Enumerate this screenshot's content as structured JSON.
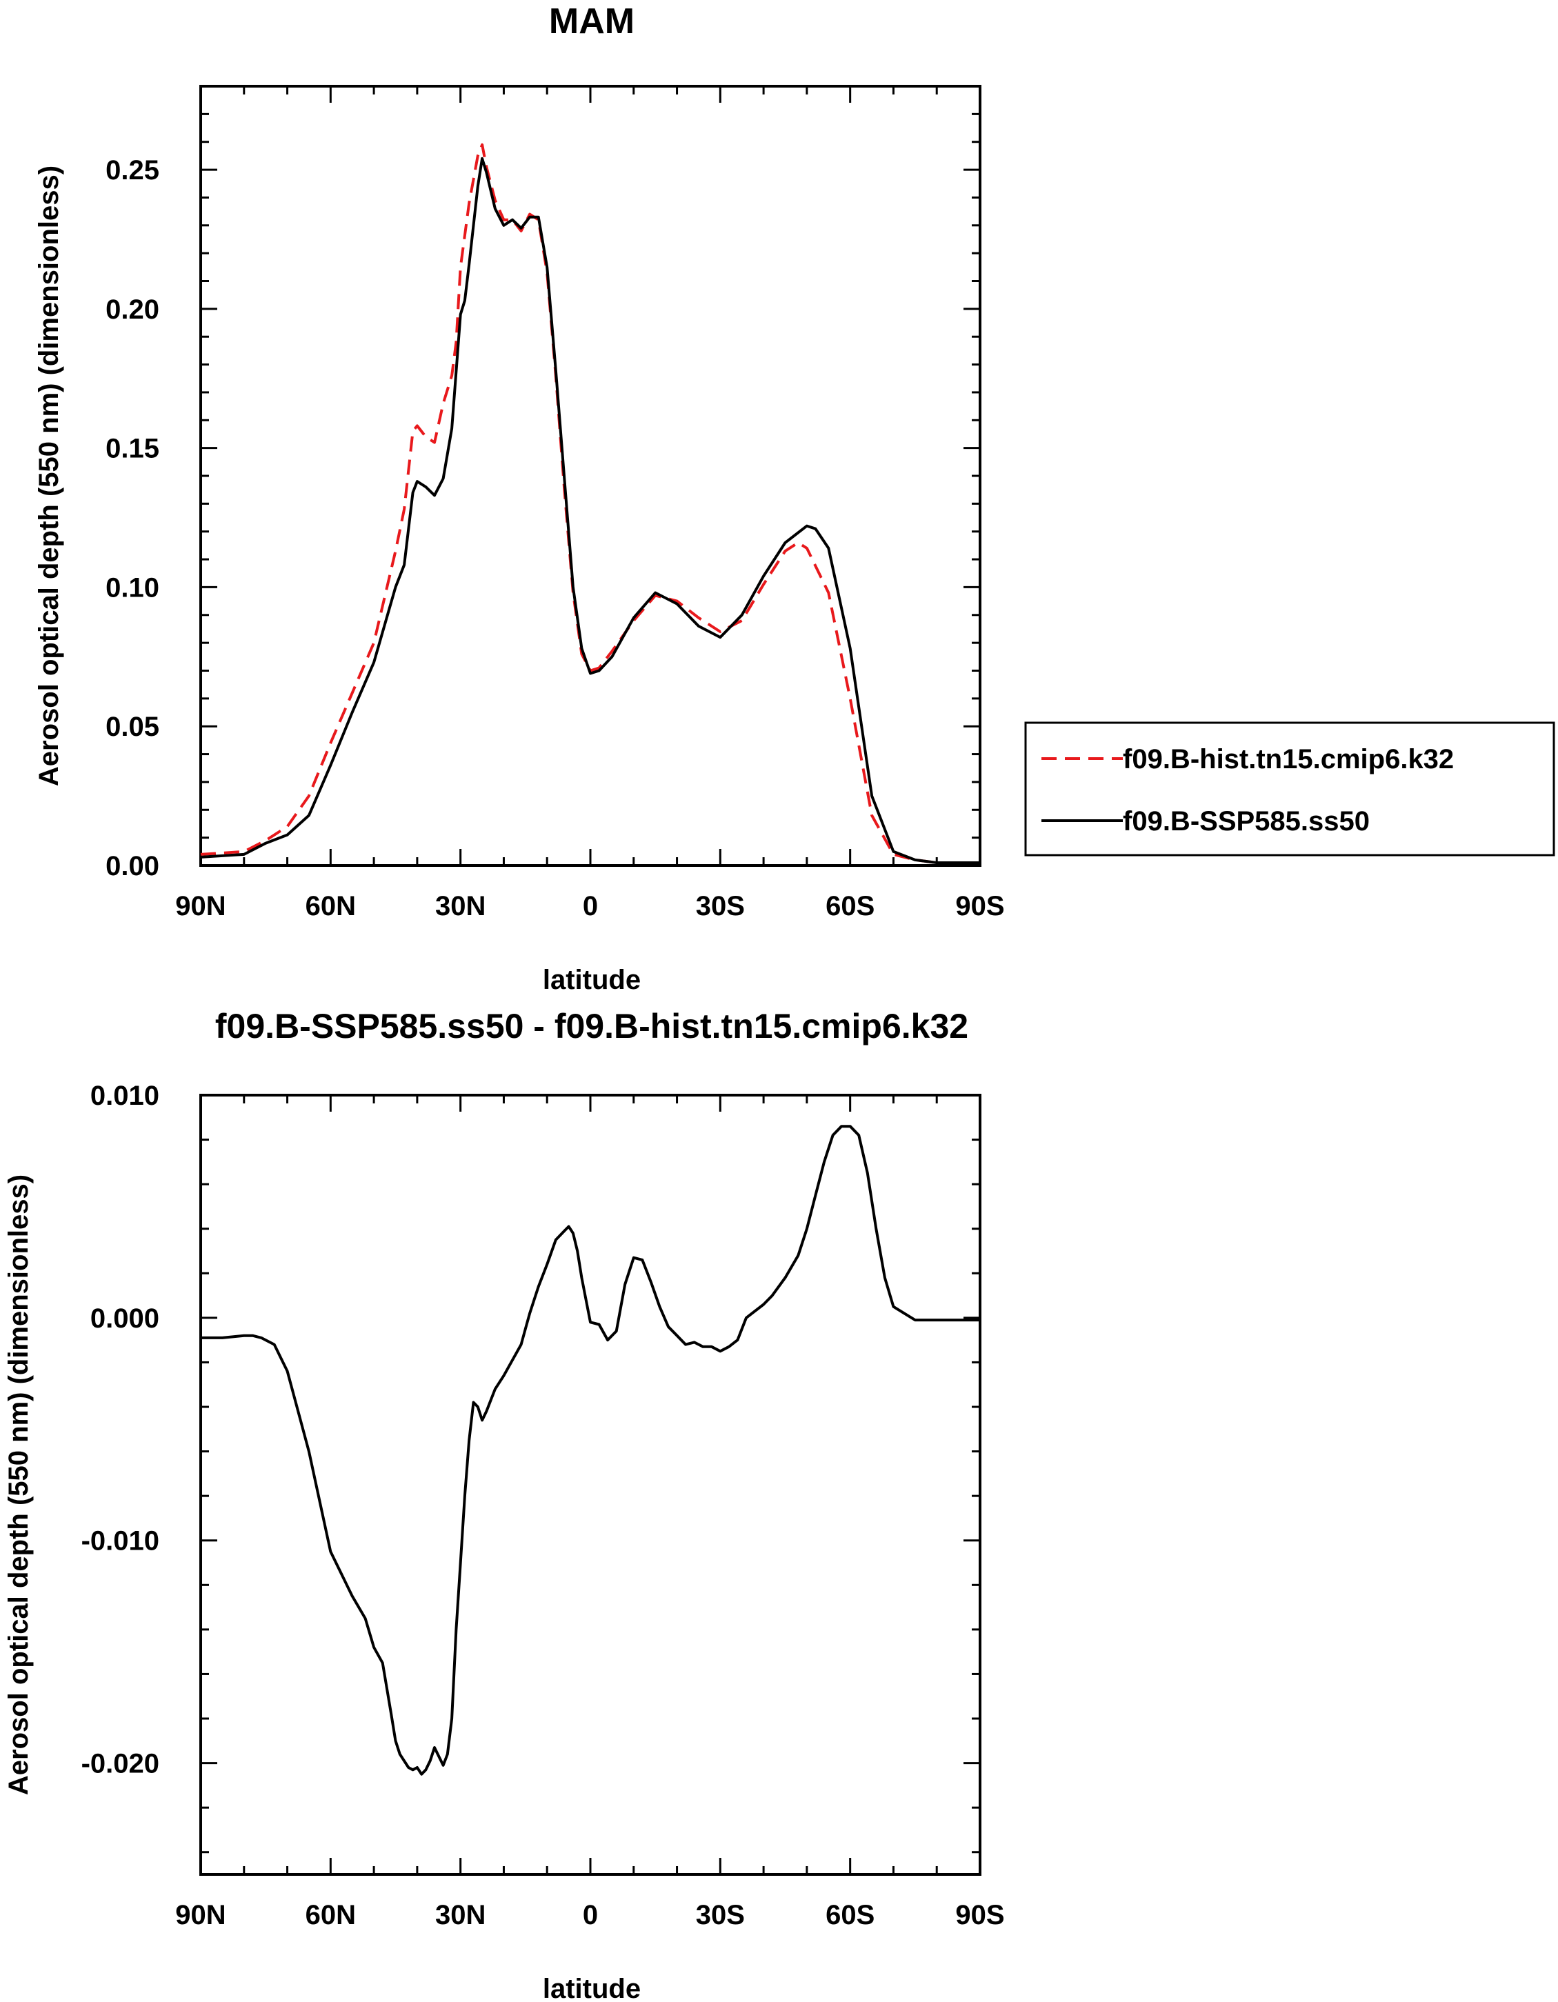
{
  "chart_data": [
    {
      "type": "line",
      "title": "MAM",
      "xlabel": "latitude",
      "ylabel": "Aerosol optical depth (550 nm) (dimensionless)",
      "xlim": [
        90,
        -90
      ],
      "ylim": [
        0,
        0.28
      ],
      "xticks": [
        90,
        60,
        30,
        0,
        -30,
        -60,
        -90
      ],
      "xticklabels": [
        "90N",
        "60N",
        "30N",
        "0",
        "30S",
        "60S",
        "90S"
      ],
      "yticks": [
        0,
        0.05,
        0.1,
        0.15,
        0.2,
        0.25
      ],
      "yticklabels": [
        "0.00",
        "0.05",
        "0.10",
        "0.15",
        "0.20",
        "0.25"
      ],
      "legend": "right-outside",
      "series": [
        {
          "name": "f09.B-hist.tn15.cmip6.k32",
          "color": "#e8191c",
          "dash": "dashed",
          "x": [
            90,
            80,
            75,
            70,
            65,
            60,
            55,
            50,
            45,
            43,
            41,
            40,
            38,
            36,
            34,
            32,
            31,
            30,
            28,
            26,
            25,
            24,
            22,
            20,
            18,
            16,
            14,
            12,
            10,
            8,
            6,
            4,
            2,
            0,
            -2,
            -5,
            -10,
            -15,
            -20,
            -25,
            -30,
            -35,
            -40,
            -45,
            -48,
            -50,
            -55,
            -60,
            -65,
            -70,
            -75,
            -80,
            -90
          ],
          "y": [
            0.004,
            0.005,
            0.009,
            0.014,
            0.025,
            0.044,
            0.062,
            0.08,
            0.113,
            0.128,
            0.156,
            0.158,
            0.154,
            0.152,
            0.166,
            0.176,
            0.188,
            0.215,
            0.238,
            0.255,
            0.259,
            0.251,
            0.239,
            0.232,
            0.232,
            0.228,
            0.234,
            0.232,
            0.213,
            0.176,
            0.135,
            0.098,
            0.076,
            0.07,
            0.071,
            0.077,
            0.088,
            0.097,
            0.095,
            0.089,
            0.084,
            0.088,
            0.101,
            0.113,
            0.116,
            0.114,
            0.098,
            0.06,
            0.018,
            0.004,
            0.002,
            0.001,
            0.001
          ]
        },
        {
          "name": "f09.B-SSP585.ss50",
          "color": "#000000",
          "dash": "solid",
          "x": [
            90,
            80,
            75,
            70,
            65,
            60,
            55,
            50,
            45,
            43,
            41,
            40,
            38,
            36,
            34,
            32,
            30,
            29,
            28,
            26,
            25,
            24,
            22,
            20,
            18,
            16,
            14,
            12,
            10,
            8,
            6,
            4,
            2,
            0,
            -2,
            -5,
            -10,
            -15,
            -20,
            -25,
            -30,
            -35,
            -40,
            -45,
            -50,
            -52,
            -55,
            -60,
            -65,
            -70,
            -75,
            -80,
            -90
          ],
          "y": [
            0.003,
            0.004,
            0.008,
            0.011,
            0.018,
            0.036,
            0.055,
            0.073,
            0.1,
            0.108,
            0.134,
            0.138,
            0.136,
            0.133,
            0.139,
            0.157,
            0.198,
            0.203,
            0.216,
            0.244,
            0.254,
            0.249,
            0.236,
            0.23,
            0.232,
            0.229,
            0.233,
            0.233,
            0.215,
            0.178,
            0.139,
            0.1,
            0.078,
            0.069,
            0.07,
            0.075,
            0.089,
            0.098,
            0.094,
            0.086,
            0.082,
            0.09,
            0.104,
            0.116,
            0.122,
            0.121,
            0.114,
            0.078,
            0.025,
            0.005,
            0.002,
            0.001,
            0.001
          ]
        }
      ]
    },
    {
      "type": "line",
      "title": "f09.B-SSP585.ss50 - f09.B-hist.tn15.cmip6.k32",
      "xlabel": "latitude",
      "ylabel": "Aerosol optical depth (550 nm) (dimensionless)",
      "xlim": [
        90,
        -90
      ],
      "ylim": [
        -0.025,
        0.01
      ],
      "xticks": [
        90,
        60,
        30,
        0,
        -30,
        -60,
        -90
      ],
      "xticklabels": [
        "90N",
        "60N",
        "30N",
        "0",
        "30S",
        "60S",
        "90S"
      ],
      "yticks": [
        0.01,
        0.0,
        -0.01,
        -0.02
      ],
      "yticklabels": [
        "0.010",
        "0.000",
        "-0.010",
        "-0.020"
      ],
      "series": [
        {
          "color": "#000000",
          "dash": "solid",
          "x": [
            90,
            85,
            80,
            78,
            76,
            73,
            70,
            65,
            60,
            55,
            52,
            50,
            48,
            46,
            45,
            44,
            42,
            41,
            40,
            39,
            38,
            37,
            36,
            35,
            34,
            33,
            32,
            31,
            30,
            29,
            28,
            27,
            26,
            25,
            24,
            23,
            22,
            20,
            18,
            16,
            15,
            14,
            13,
            12,
            10,
            8,
            6,
            5,
            4,
            3,
            2,
            0,
            -2,
            -4,
            -6,
            -8,
            -10,
            -12,
            -14,
            -16,
            -18,
            -20,
            -22,
            -24,
            -26,
            -28,
            -30,
            -32,
            -34,
            -36,
            -40,
            -42,
            -45,
            -48,
            -50,
            -52,
            -54,
            -56,
            -58,
            -60,
            -62,
            -64,
            -66,
            -68,
            -70,
            -75,
            -80,
            -90
          ],
          "y": [
            -0.0009,
            -0.0009,
            -0.0008,
            -0.0008,
            -0.0009,
            -0.0012,
            -0.0024,
            -0.006,
            -0.0105,
            -0.0125,
            -0.0135,
            -0.0148,
            -0.0155,
            -0.0178,
            -0.019,
            -0.0196,
            -0.0202,
            -0.0203,
            -0.0202,
            -0.0205,
            -0.0203,
            -0.0199,
            -0.0193,
            -0.0197,
            -0.0201,
            -0.0196,
            -0.018,
            -0.014,
            -0.011,
            -0.008,
            -0.0055,
            -0.0038,
            -0.004,
            -0.0046,
            -0.0042,
            -0.0037,
            -0.0032,
            -0.0026,
            -0.0019,
            -0.0012,
            -0.0005,
            0.0002,
            0.0008,
            0.0014,
            0.0024,
            0.0035,
            0.0039,
            0.0041,
            0.0038,
            0.003,
            0.0018,
            -0.0002,
            -0.0003,
            -0.001,
            -0.0006,
            0.0015,
            0.0027,
            0.0026,
            0.0016,
            0.0005,
            -0.0004,
            -0.0008,
            -0.0012,
            -0.0011,
            -0.0013,
            -0.0013,
            -0.0015,
            -0.0013,
            -0.001,
            0.0,
            0.0006,
            0.001,
            0.0018,
            0.0028,
            0.004,
            0.0055,
            0.007,
            0.0082,
            0.0086,
            0.0086,
            0.0082,
            0.0065,
            0.004,
            0.0018,
            0.0005,
            -0.0001,
            -0.0001,
            -0.0001
          ]
        }
      ]
    }
  ]
}
